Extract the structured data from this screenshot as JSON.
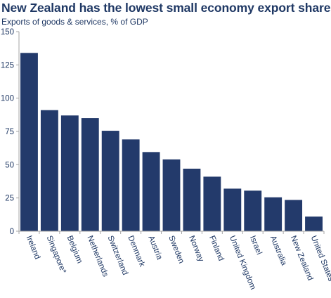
{
  "header": {
    "title": "New Zealand has the lowest small economy export share",
    "subtitle": "Exports of goods & services, % of GDP"
  },
  "colors": {
    "bar": "#233a6b",
    "axis": "#a6a6a6",
    "text": "#1f3864"
  },
  "chart_data": {
    "type": "bar",
    "title": "New Zealand has the lowest small economy export share",
    "subtitle": "Exports of goods & services, % of GDP",
    "xlabel": "",
    "ylabel": "",
    "ylim": [
      0,
      150
    ],
    "yticks": [
      0,
      25,
      50,
      75,
      100,
      125,
      150
    ],
    "grid": false,
    "categories": [
      "Ireland",
      "Singapore*",
      "Belgium",
      "Netherlands",
      "Switzerland",
      "Denmark",
      "Austria",
      "Sweden",
      "Norway",
      "Finland",
      "United Kingdom",
      "Israel",
      "Australia",
      "New Zealand",
      "United States"
    ],
    "values": [
      134,
      91,
      87,
      85,
      75.5,
      69,
      59.5,
      54,
      47,
      41,
      32,
      30.5,
      25.5,
      23.5,
      11
    ]
  }
}
